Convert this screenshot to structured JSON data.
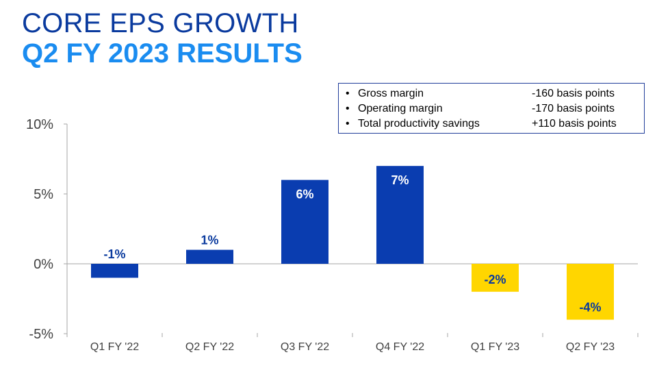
{
  "slide": {
    "title_line1": "CORE EPS GROWTH",
    "title_line2": "Q2 FY 2023 RESULTS"
  },
  "notes": [
    {
      "bullet": "•",
      "label": "Gross margin",
      "value": "-160 basis points"
    },
    {
      "bullet": "•",
      "label": "Operating margin",
      "value": "-170 basis points"
    },
    {
      "bullet": "•",
      "label": "Total productivity savings",
      "value": "+110 basis points"
    }
  ],
  "colors": {
    "title_dark": "#0a3a9e",
    "title_light": "#1a8cf0",
    "bar_blue": "#0a3db0",
    "bar_yellow": "#ffd600",
    "label_blue": "#0a3a9e",
    "label_white": "#ffffff"
  },
  "chart_data": {
    "type": "bar",
    "categories": [
      "Q1 FY '22",
      "Q2 FY '22",
      "Q3 FY '22",
      "Q4 FY '22",
      "Q1 FY '23",
      "Q2 FY '23"
    ],
    "values": [
      -1,
      1,
      6,
      7,
      -2,
      -4
    ],
    "data_labels": [
      "-1%",
      "1%",
      "6%",
      "7%",
      "-2%",
      "-4%"
    ],
    "bar_colors": [
      "blue",
      "blue",
      "blue",
      "blue",
      "yellow",
      "yellow"
    ],
    "yticks": [
      10,
      5,
      0,
      -5
    ],
    "ytick_labels": [
      "10%",
      "5%",
      "0%",
      "-5%"
    ],
    "ylim": [
      -5,
      10
    ],
    "grid": false,
    "legend": "none"
  }
}
